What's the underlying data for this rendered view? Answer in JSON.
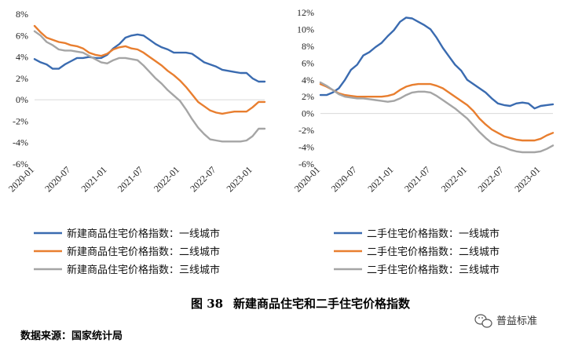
{
  "chart_data": [
    {
      "type": "line",
      "x": [
        "2020-01",
        "2020-02",
        "2020-03",
        "2020-04",
        "2020-05",
        "2020-06",
        "2020-07",
        "2020-08",
        "2020-09",
        "2020-10",
        "2020-11",
        "2020-12",
        "2021-01",
        "2021-02",
        "2021-03",
        "2021-04",
        "2021-05",
        "2021-06",
        "2021-07",
        "2021-08",
        "2021-09",
        "2021-10",
        "2021-11",
        "2021-12",
        "2022-01",
        "2022-02",
        "2022-03",
        "2022-04",
        "2022-05",
        "2022-06",
        "2022-07",
        "2022-08",
        "2022-09",
        "2022-10",
        "2022-11",
        "2022-12",
        "2023-01",
        "2023-02",
        "2023-03"
      ],
      "xticks": [
        "2020-01",
        "2020-07",
        "2021-01",
        "2021-07",
        "2022-01",
        "2022-07",
        "2023-01"
      ],
      "yticks": [
        "8%",
        "6%",
        "4%",
        "2%",
        "0%",
        "-2%",
        "-4%",
        "-6%"
      ],
      "ylim": [
        -6,
        8
      ],
      "series": [
        {
          "name": "新建商品住宅价格指数：一线城市",
          "color": "#3A6BB0",
          "values": [
            3.8,
            3.5,
            3.3,
            2.9,
            2.9,
            3.3,
            3.6,
            3.9,
            3.9,
            4.0,
            3.9,
            3.9,
            4.2,
            4.8,
            5.2,
            5.8,
            6.0,
            6.1,
            6.0,
            5.6,
            5.2,
            4.9,
            4.7,
            4.4,
            4.4,
            4.4,
            4.3,
            3.9,
            3.5,
            3.3,
            3.1,
            2.8,
            2.7,
            2.6,
            2.5,
            2.5,
            2.0,
            1.7,
            1.7
          ]
        },
        {
          "name": "新建商品住宅价格指数：二线城市",
          "color": "#E87E2F",
          "values": [
            6.9,
            6.3,
            5.8,
            5.6,
            5.4,
            5.3,
            5.1,
            5.0,
            4.8,
            4.4,
            4.2,
            4.1,
            4.3,
            4.7,
            4.9,
            5.0,
            4.8,
            4.7,
            4.4,
            4.0,
            3.6,
            3.2,
            2.7,
            2.3,
            1.8,
            1.2,
            0.5,
            -0.2,
            -0.6,
            -1.0,
            -1.2,
            -1.3,
            -1.2,
            -1.1,
            -1.1,
            -1.1,
            -0.7,
            -0.2,
            -0.2
          ]
        },
        {
          "name": "新建商品住宅价格指数：三线城市",
          "color": "#A5A5A5",
          "values": [
            6.4,
            6.0,
            5.4,
            5.1,
            4.7,
            4.6,
            4.6,
            4.5,
            4.4,
            4.1,
            3.8,
            3.5,
            3.4,
            3.7,
            3.9,
            3.9,
            3.8,
            3.7,
            3.2,
            2.6,
            2.0,
            1.5,
            0.9,
            0.4,
            -0.1,
            -0.9,
            -1.8,
            -2.6,
            -3.2,
            -3.7,
            -3.8,
            -3.9,
            -3.9,
            -3.9,
            -3.9,
            -3.8,
            -3.4,
            -2.7,
            -2.7
          ]
        }
      ]
    },
    {
      "type": "line",
      "x": [
        "2020-01",
        "2020-02",
        "2020-03",
        "2020-04",
        "2020-05",
        "2020-06",
        "2020-07",
        "2020-08",
        "2020-09",
        "2020-10",
        "2020-11",
        "2020-12",
        "2021-01",
        "2021-02",
        "2021-03",
        "2021-04",
        "2021-05",
        "2021-06",
        "2021-07",
        "2021-08",
        "2021-09",
        "2021-10",
        "2021-11",
        "2021-12",
        "2022-01",
        "2022-02",
        "2022-03",
        "2022-04",
        "2022-05",
        "2022-06",
        "2022-07",
        "2022-08",
        "2022-09",
        "2022-10",
        "2022-11",
        "2022-12",
        "2023-01",
        "2023-02",
        "2023-03"
      ],
      "xticks": [
        "2020-01",
        "2020-07",
        "2021-01",
        "2021-07",
        "2022-01",
        "2022-07",
        "2023-01"
      ],
      "yticks": [
        "12%",
        "10%",
        "8%",
        "6%",
        "4%",
        "2%",
        "0%",
        "-2%",
        "-4%",
        "-6%"
      ],
      "ylim": [
        -6,
        12
      ],
      "series": [
        {
          "name": "二手住宅价格指数：一线城市",
          "color": "#3A6BB0",
          "values": [
            2.2,
            2.2,
            2.5,
            3.0,
            4.0,
            5.2,
            5.8,
            6.9,
            7.3,
            7.9,
            8.4,
            9.2,
            9.9,
            10.9,
            11.4,
            11.3,
            10.9,
            10.5,
            10.0,
            9.0,
            7.8,
            6.8,
            5.8,
            5.1,
            4.0,
            3.5,
            3.0,
            2.5,
            1.8,
            1.2,
            1.0,
            0.9,
            1.2,
            1.3,
            1.2,
            0.6,
            0.9,
            1.0,
            1.1
          ]
        },
        {
          "name": "二手住宅价格指数：二线城市",
          "color": "#E87E2F",
          "values": [
            3.5,
            3.2,
            2.8,
            2.4,
            2.2,
            2.1,
            2.0,
            2.0,
            2.0,
            2.0,
            2.0,
            2.1,
            2.3,
            2.8,
            3.2,
            3.4,
            3.5,
            3.5,
            3.5,
            3.3,
            3.0,
            2.5,
            2.0,
            1.5,
            1.0,
            0.3,
            -0.6,
            -1.3,
            -1.9,
            -2.3,
            -2.7,
            -2.9,
            -3.1,
            -3.2,
            -3.2,
            -3.2,
            -3.0,
            -2.6,
            -2.3
          ]
        },
        {
          "name": "二手住宅价格指数：三线城市",
          "color": "#A5A5A5",
          "values": [
            3.7,
            3.3,
            2.8,
            2.3,
            2.0,
            1.9,
            1.8,
            1.8,
            1.7,
            1.6,
            1.5,
            1.4,
            1.5,
            1.8,
            2.2,
            2.5,
            2.6,
            2.6,
            2.5,
            2.1,
            1.6,
            1.1,
            0.6,
            0.0,
            -0.6,
            -1.4,
            -2.2,
            -2.9,
            -3.5,
            -3.8,
            -4.0,
            -4.3,
            -4.5,
            -4.6,
            -4.6,
            -4.6,
            -4.5,
            -4.2,
            -3.8
          ]
        }
      ]
    }
  ],
  "caption": {
    "fig_num": "图 38",
    "fig_title": "新建商品住宅和二手住宅价格指数"
  },
  "source": "数据来源：国家统计局",
  "watermark": {
    "icon": "wechat-icon",
    "text": "普益标准"
  }
}
